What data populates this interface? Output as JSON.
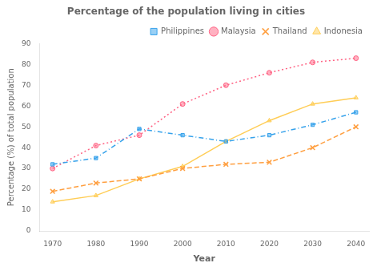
{
  "chart_data": {
    "type": "line",
    "title": "Percentage of the population living in cities",
    "xlabel": "Year",
    "ylabel": "Percentage (%) of total population",
    "x": [
      1970,
      1980,
      1990,
      2000,
      2010,
      2020,
      2030,
      2040
    ],
    "xlim": [
      1967,
      2043
    ],
    "xticks": [
      1970,
      1980,
      1990,
      2000,
      2010,
      2020,
      2030,
      2040
    ],
    "ylim": [
      0,
      90
    ],
    "yticks": [
      0,
      10,
      20,
      30,
      40,
      50,
      60,
      70,
      80,
      90
    ],
    "grid": false,
    "legend": "upper right",
    "series": [
      {
        "name": "Philippines",
        "values": [
          32,
          35,
          49,
          46,
          43,
          46,
          51,
          57
        ],
        "marker": "square",
        "line_style": "dashdot"
      },
      {
        "name": "Malaysia",
        "values": [
          30,
          41,
          46,
          61,
          70,
          76,
          81,
          83
        ],
        "marker": "circle",
        "line_style": "dotted"
      },
      {
        "name": "Thailand",
        "values": [
          19,
          23,
          25,
          30,
          32,
          33,
          40,
          50
        ],
        "marker": "x",
        "line_style": "dashed"
      },
      {
        "name": "Indonesia",
        "values": [
          14,
          17,
          25,
          31,
          43,
          53,
          61,
          64
        ],
        "marker": "triangle",
        "line_style": "solid"
      }
    ]
  }
}
